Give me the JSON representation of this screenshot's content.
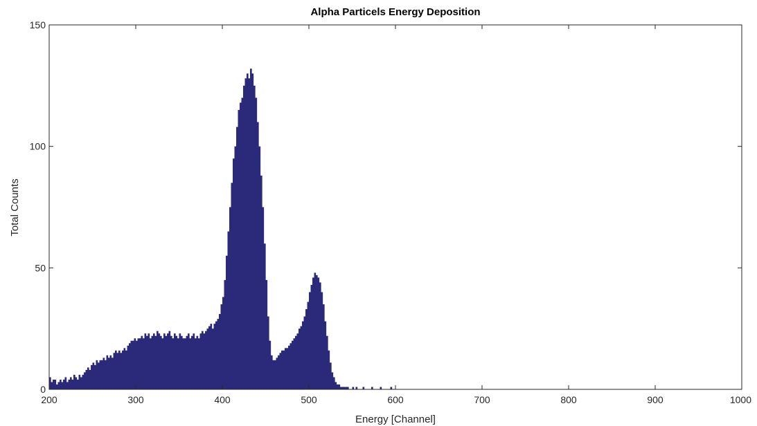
{
  "chart_data": {
    "type": "bar",
    "title": "Alpha Particels Energy Deposition",
    "xlabel": "Energy [Channel]",
    "ylabel": "Total Counts",
    "xlim": [
      200,
      1000
    ],
    "ylim": [
      0,
      150
    ],
    "xticks": [
      "200",
      "300",
      "400",
      "500",
      "600",
      "700",
      "800",
      "900",
      "1000"
    ],
    "yticks": [
      "0",
      "50",
      "100",
      "150"
    ],
    "grid": false,
    "color": "#2b2a7a",
    "x_start": 200,
    "bin_width": 2,
    "values": [
      5,
      3,
      4,
      4,
      2,
      3,
      4,
      3,
      4,
      5,
      3,
      4,
      5,
      4,
      6,
      5,
      4,
      6,
      5,
      6,
      7,
      8,
      9,
      8,
      10,
      11,
      10,
      12,
      11,
      12,
      12,
      13,
      12,
      14,
      13,
      14,
      13,
      15,
      16,
      15,
      16,
      15,
      16,
      17,
      16,
      18,
      19,
      20,
      20,
      21,
      20,
      21,
      21,
      22,
      21,
      23,
      22,
      23,
      21,
      22,
      23,
      22,
      24,
      23,
      22,
      21,
      23,
      22,
      23,
      24,
      22,
      21,
      23,
      22,
      21,
      23,
      22,
      21,
      21,
      22,
      23,
      21,
      22,
      23,
      21,
      22,
      21,
      23,
      24,
      23,
      24,
      25,
      26,
      27,
      25,
      27,
      28,
      29,
      31,
      35,
      38,
      45,
      55,
      65,
      75,
      85,
      95,
      100,
      108,
      115,
      118,
      120,
      125,
      128,
      130,
      128,
      132,
      130,
      125,
      120,
      110,
      100,
      88,
      75,
      60,
      45,
      30,
      20,
      14,
      12,
      12,
      13,
      14,
      15,
      16,
      16,
      17,
      17,
      18,
      19,
      20,
      21,
      22,
      23,
      25,
      26,
      28,
      30,
      33,
      36,
      40,
      43,
      46,
      48,
      47,
      46,
      44,
      40,
      35,
      28,
      22,
      16,
      11,
      7,
      5,
      3,
      2,
      2,
      1,
      1,
      1,
      1,
      1,
      0,
      0,
      1,
      0,
      1,
      0,
      0,
      0,
      1,
      0,
      0,
      0,
      0,
      1,
      0,
      0,
      0,
      0,
      1,
      0,
      0,
      0,
      0,
      0,
      1,
      0,
      0,
      0,
      0,
      0,
      0,
      0,
      0,
      0,
      0,
      0,
      0,
      0,
      0,
      0,
      0,
      0,
      0,
      0,
      0,
      0,
      0,
      0,
      0,
      0,
      0,
      0,
      0,
      0,
      0,
      0,
      0,
      0,
      0,
      0,
      0,
      0,
      0,
      0,
      0,
      0,
      0,
      0,
      0,
      0,
      0,
      0,
      0,
      0,
      0,
      0,
      0,
      0,
      0,
      0,
      0,
      0,
      0,
      0,
      0,
      0,
      0,
      0,
      0,
      0,
      0,
      0,
      0,
      0,
      0,
      0,
      0,
      0,
      0,
      0,
      0,
      0,
      0,
      0,
      0,
      0,
      0,
      0,
      0,
      0,
      0,
      0,
      0,
      0,
      0,
      0,
      0,
      0,
      0,
      0,
      0,
      0,
      0,
      0,
      0,
      0,
      0,
      0,
      0,
      0,
      0,
      0,
      0,
      0,
      0,
      0,
      0,
      0,
      0,
      0,
      0,
      0,
      0,
      0,
      0,
      0,
      0,
      0,
      0,
      0,
      0,
      0,
      0,
      0,
      0,
      0,
      0,
      0,
      0,
      0,
      0,
      0,
      0,
      0,
      0,
      0,
      0,
      0,
      0,
      0,
      0,
      0,
      0,
      0,
      0,
      0,
      0,
      0,
      0,
      0,
      0,
      0,
      0,
      0,
      0,
      0,
      0,
      0,
      0,
      0,
      0,
      0,
      0,
      0,
      0,
      0,
      0,
      0,
      0,
      0,
      0,
      0,
      0,
      0,
      0,
      0,
      0,
      0,
      0,
      0,
      0,
      0,
      0,
      0,
      0,
      0,
      0,
      0,
      0,
      0,
      0,
      0,
      0,
      0,
      0,
      0,
      0,
      0,
      0,
      0,
      0,
      0,
      0,
      0,
      0,
      0,
      0,
      0,
      0,
      0,
      0,
      0,
      0,
      0,
      0,
      0,
      0,
      0,
      0,
      0
    ]
  }
}
